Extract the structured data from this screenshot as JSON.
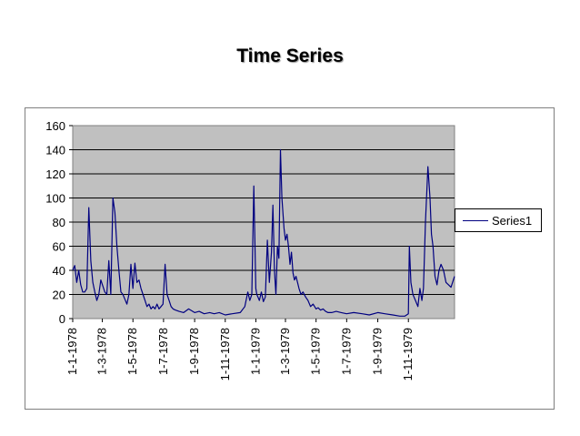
{
  "chart_data": {
    "type": "line",
    "title": "Time Series",
    "xlabel": "",
    "ylabel": "",
    "ylim": [
      0,
      160
    ],
    "yticks": [
      0,
      20,
      40,
      60,
      80,
      100,
      120,
      140,
      160
    ],
    "xticklabels": [
      "1-1-1978",
      "1-3-1978",
      "1-5-1978",
      "1-7-1978",
      "1-9-1978",
      "1-11-1978",
      "1-1-1979",
      "1-3-1979",
      "1-5-1979",
      "1-7-1979",
      "1-9-1979",
      "1-11-1979"
    ],
    "xlim": [
      "1-1-1978",
      "1-2-1980"
    ],
    "grid": "horizontal",
    "plot_background": "#c0c0c0",
    "line_color": "#000080",
    "legend": "right",
    "series": [
      {
        "name": "Series1",
        "x": [
          "1-1-1978",
          "5-1-1978",
          "9-1-1978",
          "13-1-1978",
          "17-1-1978",
          "21-1-1978",
          "25-1-1978",
          "29-1-1978",
          "2-2-1978",
          "6-2-1978",
          "10-2-1978",
          "14-2-1978",
          "18-2-1978",
          "22-2-1978",
          "26-2-1978",
          "2-3-1978",
          "6-3-1978",
          "10-3-1978",
          "14-3-1978",
          "18-3-1978",
          "22-3-1978",
          "26-3-1978",
          "30-3-1978",
          "3-4-1978",
          "7-4-1978",
          "11-4-1978",
          "15-4-1978",
          "19-4-1978",
          "23-4-1978",
          "27-4-1978",
          "1-5-1978",
          "5-5-1978",
          "9-5-1978",
          "13-5-1978",
          "17-5-1978",
          "21-5-1978",
          "25-5-1978",
          "29-5-1978",
          "2-6-1978",
          "6-6-1978",
          "10-6-1978",
          "14-6-1978",
          "18-6-1978",
          "22-6-1978",
          "26-6-1978",
          "30-6-1978",
          "4-7-1978",
          "8-7-1978",
          "12-7-1978",
          "16-7-1978",
          "20-7-1978",
          "25-7-1978",
          "1-8-1978",
          "10-8-1978",
          "20-8-1978",
          "1-9-1978",
          "10-9-1978",
          "20-9-1978",
          "1-10-1978",
          "10-10-1978",
          "20-10-1978",
          "1-11-1978",
          "15-11-1978",
          "1-12-1978",
          "10-12-1978",
          "16-12-1978",
          "20-12-1978",
          "24-12-1978",
          "28-12-1978",
          "1-1-1979",
          "3-1-1979",
          "5-1-1979",
          "8-1-1979",
          "12-1-1979",
          "16-1-1979",
          "20-1-1979",
          "24-1-1979",
          "28-1-1979",
          "1-2-1979",
          "4-2-1979",
          "7-2-1979",
          "10-2-1979",
          "13-2-1979",
          "16-2-1979",
          "19-2-1979",
          "22-2-1979",
          "26-2-1979",
          "1-3-1979",
          "4-3-1979",
          "7-3-1979",
          "10-3-1979",
          "13-3-1979",
          "16-3-1979",
          "19-3-1979",
          "22-3-1979",
          "25-3-1979",
          "28-3-1979",
          "1-4-1979",
          "5-4-1979",
          "10-4-1979",
          "15-4-1979",
          "20-4-1979",
          "25-4-1979",
          "1-5-1979",
          "5-5-1979",
          "10-5-1979",
          "15-5-1979",
          "20-5-1979",
          "25-5-1979",
          "1-6-1979",
          "10-6-1979",
          "20-6-1979",
          "1-7-1979",
          "15-7-1979",
          "1-8-1979",
          "15-8-1979",
          "1-9-1979",
          "15-9-1979",
          "1-10-1979",
          "15-10-1979",
          "25-10-1979",
          "1-11-1979",
          "3-11-1979",
          "6-11-1979",
          "10-11-1979",
          "15-11-1979",
          "20-11-1979",
          "24-11-1979",
          "28-11-1979",
          "1-12-1979",
          "5-12-1979",
          "10-12-1979",
          "14-12-1979",
          "17-12-1979",
          "20-12-1979",
          "24-12-1979",
          "28-12-1979",
          "1-1-1980",
          "5-1-1980",
          "10-1-1980",
          "15-1-1980",
          "20-1-1980",
          "25-1-1980",
          "1-2-1980"
        ],
        "values": [
          40,
          44,
          30,
          40,
          28,
          22,
          22,
          25,
          92,
          48,
          30,
          22,
          15,
          20,
          32,
          27,
          22,
          20,
          48,
          20,
          100,
          88,
          60,
          40,
          22,
          20,
          16,
          12,
          20,
          45,
          25,
          46,
          30,
          32,
          25,
          20,
          15,
          10,
          12,
          8,
          10,
          8,
          12,
          8,
          10,
          12,
          45,
          20,
          15,
          10,
          8,
          7,
          6,
          5,
          8,
          5,
          6,
          4,
          5,
          4,
          5,
          3,
          4,
          5,
          10,
          22,
          15,
          20,
          110,
          25,
          20,
          18,
          15,
          22,
          14,
          18,
          65,
          30,
          55,
          94,
          40,
          20,
          60,
          50,
          140,
          100,
          75,
          65,
          70,
          60,
          45,
          55,
          38,
          32,
          35,
          30,
          25,
          20,
          22,
          18,
          15,
          10,
          12,
          8,
          9,
          7,
          8,
          6,
          5,
          5,
          6,
          5,
          4,
          5,
          4,
          3,
          5,
          4,
          3,
          2,
          2,
          4,
          60,
          30,
          20,
          15,
          10,
          25,
          15,
          25,
          80,
          126,
          100,
          70,
          60,
          35,
          28,
          40,
          45,
          40,
          30,
          28,
          26,
          35
        ]
      }
    ]
  }
}
